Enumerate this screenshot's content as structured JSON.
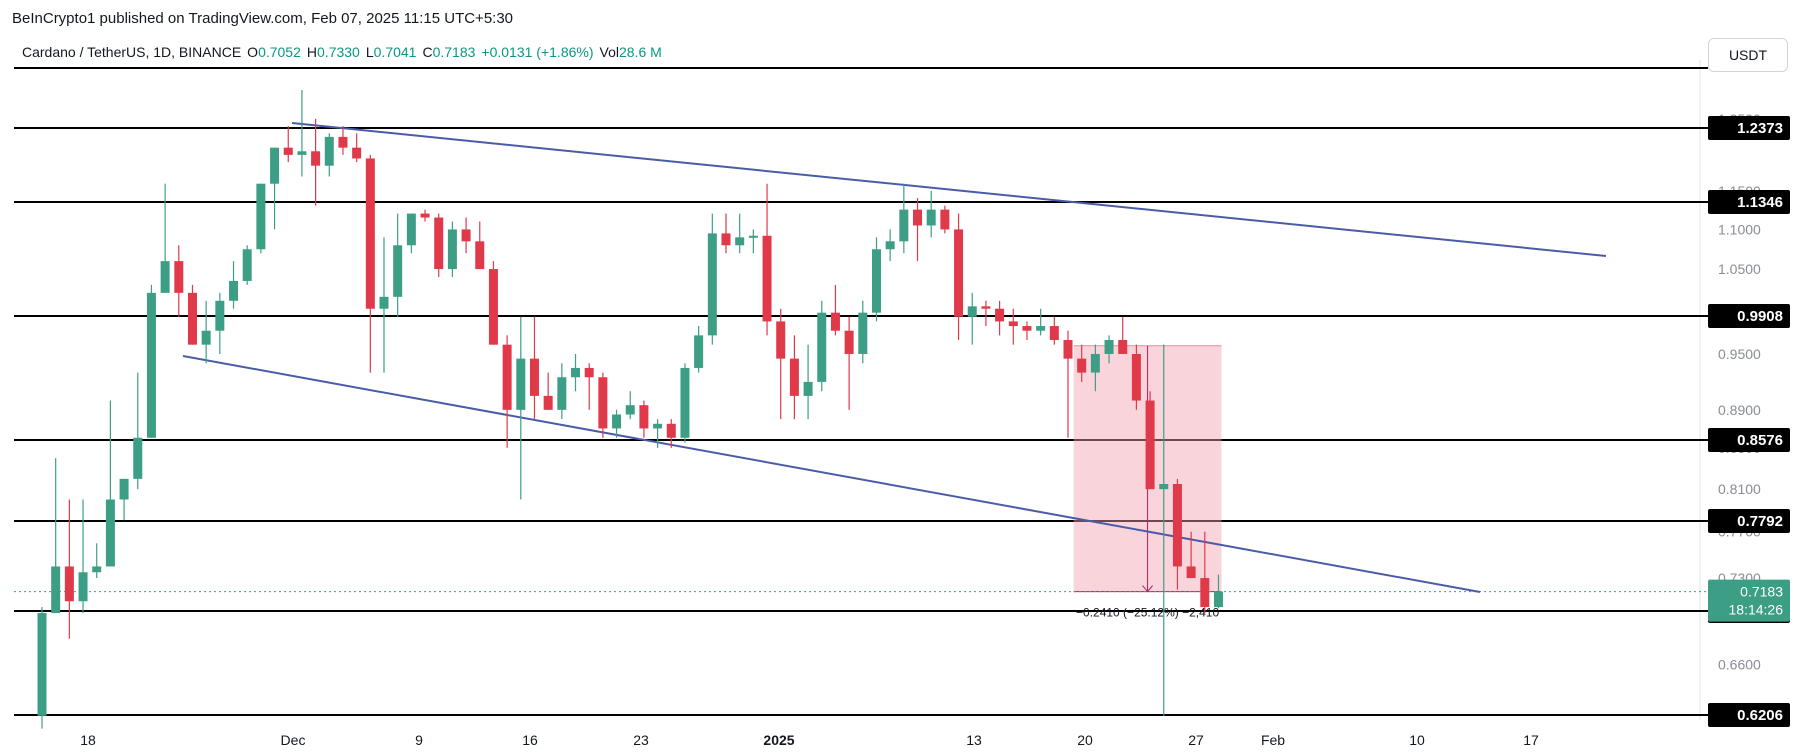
{
  "header": {
    "publisher": "BeInCrypto1 published on TradingView.com, Feb 07, 2025 11:15 UTC+5:30"
  },
  "legend": {
    "symbol": "Cardano / TetherUS, 1D, BINANCE",
    "o_label": "O",
    "o_value": "0.7052",
    "h_label": "H",
    "h_value": "0.7330",
    "l_label": "L",
    "l_value": "0.7041",
    "c_label": "C",
    "c_value": "0.7183",
    "change": "+0.0131 (+1.86%)",
    "vol_label": "Vol",
    "vol_value": "28.6 M"
  },
  "currency_button": "USDT",
  "colors": {
    "up": "#3d9e86",
    "down": "#e0394a",
    "channel": "#4a5ca8",
    "level_line": "#000000",
    "level_label_bg": "#000000",
    "measure_fill": "#f5a0b0",
    "price_bg": "#3d9e86"
  },
  "chart_data": {
    "type": "candlestick",
    "title": "Cardano / TetherUS, 1D, BINANCE",
    "y_ticks": [
      "1.2500",
      "1.1500",
      "1.1000",
      "1.0500",
      "1.0000",
      "0.9500",
      "0.8900",
      "0.8500",
      "0.8100",
      "0.7700",
      "0.7300",
      "0.6600",
      "0.6200"
    ],
    "x_ticks": [
      {
        "label": "18",
        "bold": false
      },
      {
        "label": "Dec",
        "bold": false
      },
      {
        "label": "9",
        "bold": false
      },
      {
        "label": "16",
        "bold": false
      },
      {
        "label": "23",
        "bold": false
      },
      {
        "label": "2025",
        "bold": true
      },
      {
        "label": "13",
        "bold": false
      },
      {
        "label": "20",
        "bold": false
      },
      {
        "label": "27",
        "bold": false
      },
      {
        "label": "Feb",
        "bold": false
      },
      {
        "label": "10",
        "bold": false
      },
      {
        "label": "17",
        "bold": false
      }
    ],
    "levels": [
      "1.2373",
      "1.1346",
      "0.9908",
      "0.8576",
      "0.7792",
      "0.7016",
      "0.6206"
    ],
    "current_price": "0.7183",
    "countdown": "18:14:26",
    "measure_label": "−0.2410 (−25.12%) −2,410",
    "candles": [
      {
        "o": 0.62,
        "h": 0.705,
        "l": 0.61,
        "c": 0.7
      },
      {
        "o": 0.7,
        "h": 0.84,
        "l": 0.7,
        "c": 0.74
      },
      {
        "o": 0.74,
        "h": 0.8,
        "l": 0.68,
        "c": 0.71
      },
      {
        "o": 0.71,
        "h": 0.8,
        "l": 0.7,
        "c": 0.735
      },
      {
        "o": 0.735,
        "h": 0.76,
        "l": 0.73,
        "c": 0.74
      },
      {
        "o": 0.74,
        "h": 0.9,
        "l": 0.74,
        "c": 0.8
      },
      {
        "o": 0.8,
        "h": 0.82,
        "l": 0.78,
        "c": 0.82
      },
      {
        "o": 0.82,
        "h": 0.93,
        "l": 0.81,
        "c": 0.86
      },
      {
        "o": 0.86,
        "h": 1.03,
        "l": 0.86,
        "c": 1.02
      },
      {
        "o": 1.02,
        "h": 1.16,
        "l": 1.02,
        "c": 1.06
      },
      {
        "o": 1.06,
        "h": 1.08,
        "l": 0.99,
        "c": 1.02
      },
      {
        "o": 1.02,
        "h": 1.03,
        "l": 0.96,
        "c": 0.96
      },
      {
        "o": 0.96,
        "h": 1.01,
        "l": 0.94,
        "c": 0.975
      },
      {
        "o": 0.975,
        "h": 1.02,
        "l": 0.95,
        "c": 1.01
      },
      {
        "o": 1.01,
        "h": 1.06,
        "l": 1.0,
        "c": 1.035
      },
      {
        "o": 1.035,
        "h": 1.08,
        "l": 1.03,
        "c": 1.075
      },
      {
        "o": 1.075,
        "h": 1.16,
        "l": 1.07,
        "c": 1.16
      },
      {
        "o": 1.16,
        "h": 1.21,
        "l": 1.1,
        "c": 1.21
      },
      {
        "o": 1.21,
        "h": 1.24,
        "l": 1.19,
        "c": 1.2
      },
      {
        "o": 1.2,
        "h": 1.29,
        "l": 1.17,
        "c": 1.205
      },
      {
        "o": 1.205,
        "h": 1.25,
        "l": 1.13,
        "c": 1.185
      },
      {
        "o": 1.185,
        "h": 1.23,
        "l": 1.17,
        "c": 1.225
      },
      {
        "o": 1.225,
        "h": 1.24,
        "l": 1.2,
        "c": 1.21
      },
      {
        "o": 1.21,
        "h": 1.23,
        "l": 1.19,
        "c": 1.195
      },
      {
        "o": 1.195,
        "h": 1.2,
        "l": 0.93,
        "c": 1.0
      },
      {
        "o": 1.0,
        "h": 1.09,
        "l": 0.93,
        "c": 1.015
      },
      {
        "o": 1.015,
        "h": 1.12,
        "l": 0.99,
        "c": 1.08
      },
      {
        "o": 1.08,
        "h": 1.12,
        "l": 1.07,
        "c": 1.12
      },
      {
        "o": 1.12,
        "h": 1.125,
        "l": 1.11,
        "c": 1.115
      },
      {
        "o": 1.115,
        "h": 1.12,
        "l": 1.04,
        "c": 1.05
      },
      {
        "o": 1.05,
        "h": 1.11,
        "l": 1.04,
        "c": 1.1
      },
      {
        "o": 1.1,
        "h": 1.115,
        "l": 1.07,
        "c": 1.085
      },
      {
        "o": 1.085,
        "h": 1.11,
        "l": 1.05,
        "c": 1.05
      },
      {
        "o": 1.05,
        "h": 1.06,
        "l": 0.96,
        "c": 0.96
      },
      {
        "o": 0.96,
        "h": 0.97,
        "l": 0.85,
        "c": 0.89
      },
      {
        "o": 0.89,
        "h": 0.99,
        "l": 0.8,
        "c": 0.945
      },
      {
        "o": 0.945,
        "h": 0.99,
        "l": 0.88,
        "c": 0.905
      },
      {
        "o": 0.905,
        "h": 0.93,
        "l": 0.89,
        "c": 0.89
      },
      {
        "o": 0.89,
        "h": 0.94,
        "l": 0.88,
        "c": 0.925
      },
      {
        "o": 0.925,
        "h": 0.95,
        "l": 0.91,
        "c": 0.935
      },
      {
        "o": 0.935,
        "h": 0.94,
        "l": 0.89,
        "c": 0.925
      },
      {
        "o": 0.925,
        "h": 0.93,
        "l": 0.86,
        "c": 0.87
      },
      {
        "o": 0.87,
        "h": 0.89,
        "l": 0.86,
        "c": 0.885
      },
      {
        "o": 0.885,
        "h": 0.91,
        "l": 0.88,
        "c": 0.895
      },
      {
        "o": 0.895,
        "h": 0.9,
        "l": 0.86,
        "c": 0.87
      },
      {
        "o": 0.87,
        "h": 0.88,
        "l": 0.85,
        "c": 0.875
      },
      {
        "o": 0.875,
        "h": 0.88,
        "l": 0.85,
        "c": 0.86
      },
      {
        "o": 0.86,
        "h": 0.94,
        "l": 0.855,
        "c": 0.935
      },
      {
        "o": 0.935,
        "h": 0.98,
        "l": 0.93,
        "c": 0.97
      },
      {
        "o": 0.97,
        "h": 1.12,
        "l": 0.96,
        "c": 1.095
      },
      {
        "o": 1.095,
        "h": 1.12,
        "l": 1.07,
        "c": 1.08
      },
      {
        "o": 1.08,
        "h": 1.12,
        "l": 1.07,
        "c": 1.09
      },
      {
        "o": 1.09,
        "h": 1.1,
        "l": 1.07,
        "c": 1.092
      },
      {
        "o": 1.092,
        "h": 1.16,
        "l": 0.97,
        "c": 0.985
      },
      {
        "o": 0.985,
        "h": 1.0,
        "l": 0.88,
        "c": 0.945
      },
      {
        "o": 0.945,
        "h": 0.97,
        "l": 0.88,
        "c": 0.905
      },
      {
        "o": 0.905,
        "h": 0.96,
        "l": 0.88,
        "c": 0.92
      },
      {
        "o": 0.92,
        "h": 1.01,
        "l": 0.91,
        "c": 0.995
      },
      {
        "o": 0.995,
        "h": 1.03,
        "l": 0.97,
        "c": 0.975
      },
      {
        "o": 0.975,
        "h": 0.99,
        "l": 0.89,
        "c": 0.95
      },
      {
        "o": 0.95,
        "h": 1.01,
        "l": 0.94,
        "c": 0.995
      },
      {
        "o": 0.995,
        "h": 1.09,
        "l": 0.985,
        "c": 1.075
      },
      {
        "o": 1.075,
        "h": 1.1,
        "l": 1.06,
        "c": 1.085
      },
      {
        "o": 1.085,
        "h": 1.16,
        "l": 1.07,
        "c": 1.125
      },
      {
        "o": 1.125,
        "h": 1.14,
        "l": 1.06,
        "c": 1.105
      },
      {
        "o": 1.105,
        "h": 1.15,
        "l": 1.09,
        "c": 1.125
      },
      {
        "o": 1.125,
        "h": 1.13,
        "l": 1.095,
        "c": 1.1
      },
      {
        "o": 1.1,
        "h": 1.12,
        "l": 0.965,
        "c": 0.99
      },
      {
        "o": 0.99,
        "h": 1.02,
        "l": 0.96,
        "c": 1.003
      },
      {
        "o": 1.003,
        "h": 1.01,
        "l": 0.98,
        "c": 1.0
      },
      {
        "o": 1.0,
        "h": 1.01,
        "l": 0.97,
        "c": 0.985
      },
      {
        "o": 0.985,
        "h": 1.0,
        "l": 0.96,
        "c": 0.98
      },
      {
        "o": 0.98,
        "h": 0.985,
        "l": 0.965,
        "c": 0.975
      },
      {
        "o": 0.975,
        "h": 1.0,
        "l": 0.97,
        "c": 0.98
      },
      {
        "o": 0.98,
        "h": 0.99,
        "l": 0.96,
        "c": 0.965
      },
      {
        "o": 0.965,
        "h": 0.975,
        "l": 0.86,
        "c": 0.945
      },
      {
        "o": 0.945,
        "h": 0.96,
        "l": 0.92,
        "c": 0.93
      },
      {
        "o": 0.93,
        "h": 0.96,
        "l": 0.91,
        "c": 0.95
      },
      {
        "o": 0.95,
        "h": 0.97,
        "l": 0.94,
        "c": 0.965
      },
      {
        "o": 0.965,
        "h": 0.99,
        "l": 0.95,
        "c": 0.95
      },
      {
        "o": 0.95,
        "h": 0.96,
        "l": 0.89,
        "c": 0.9
      },
      {
        "o": 0.9,
        "h": 0.91,
        "l": 0.81,
        "c": 0.81
      },
      {
        "o": 0.81,
        "h": 0.96,
        "l": 0.62,
        "c": 0.815
      },
      {
        "o": 0.815,
        "h": 0.82,
        "l": 0.72,
        "c": 0.74
      },
      {
        "o": 0.74,
        "h": 0.77,
        "l": 0.73,
        "c": 0.73
      },
      {
        "o": 0.73,
        "h": 0.77,
        "l": 0.7,
        "c": 0.705
      },
      {
        "o": 0.705,
        "h": 0.733,
        "l": 0.704,
        "c": 0.7183
      }
    ]
  }
}
